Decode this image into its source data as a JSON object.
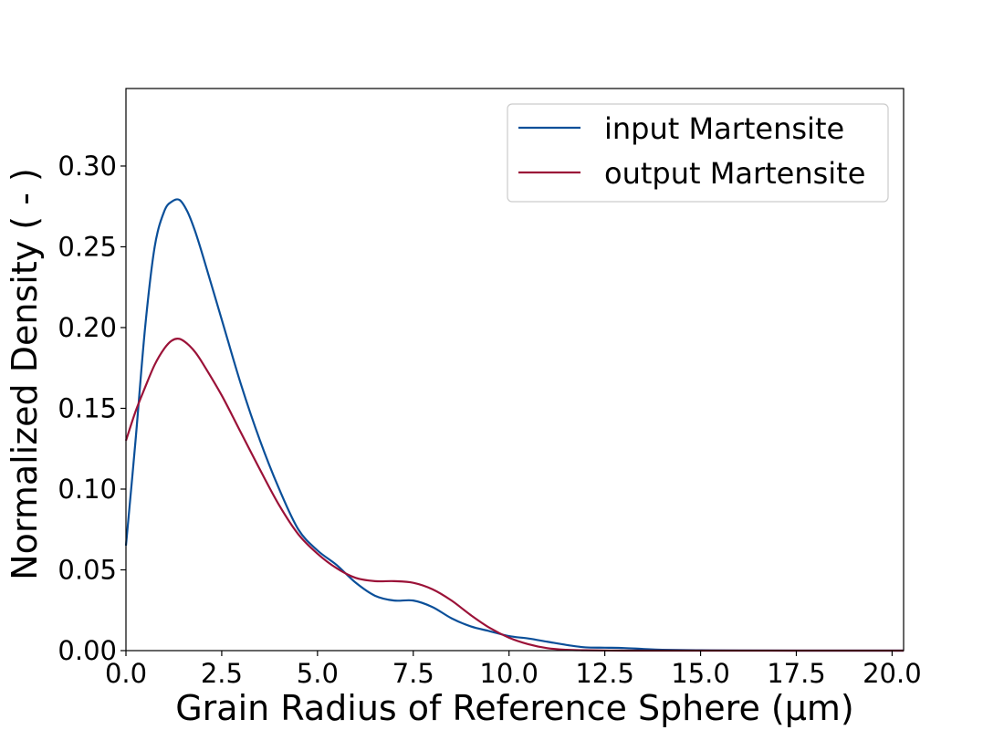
{
  "chart_data": {
    "type": "line",
    "xlabel": "Grain Radius of Reference Sphere (μm)",
    "ylabel": "Normalized Density ( - )",
    "xlim": [
      0,
      20.3
    ],
    "ylim": [
      0,
      0.348
    ],
    "xticks": [
      "0.0",
      "2.5",
      "5.0",
      "7.5",
      "10.0",
      "12.5",
      "15.0",
      "17.5",
      "20.0"
    ],
    "yticks": [
      "0.00",
      "0.05",
      "0.10",
      "0.15",
      "0.20",
      "0.25",
      "0.30"
    ],
    "legend_position": "top-right",
    "grid": false,
    "series": [
      {
        "name": "input Martensite",
        "color": "#0a4f99",
        "x": [
          0,
          0.25,
          0.5,
          0.75,
          1.0,
          1.2,
          1.4,
          1.6,
          1.8,
          2.0,
          2.5,
          3.0,
          3.5,
          4.0,
          4.5,
          5.0,
          5.5,
          6.0,
          6.5,
          7.0,
          7.5,
          8.0,
          8.5,
          9.0,
          9.5,
          10.0,
          10.5,
          11.0,
          11.5,
          12.0,
          12.5,
          13.0,
          13.5,
          14.0,
          15.0,
          16.0,
          18.0,
          20.3
        ],
        "y": [
          0.065,
          0.13,
          0.2,
          0.25,
          0.272,
          0.278,
          0.279,
          0.272,
          0.26,
          0.245,
          0.205,
          0.165,
          0.13,
          0.1,
          0.075,
          0.062,
          0.053,
          0.042,
          0.034,
          0.031,
          0.031,
          0.027,
          0.02,
          0.015,
          0.012,
          0.009,
          0.0075,
          0.0055,
          0.0035,
          0.002,
          0.0018,
          0.0016,
          0.001,
          0.0005,
          0.0002,
          0.0001,
          0.0,
          0.0
        ]
      },
      {
        "name": "output Martensite",
        "color": "#9b1238",
        "x": [
          0,
          0.25,
          0.5,
          0.75,
          1.0,
          1.2,
          1.4,
          1.6,
          1.8,
          2.0,
          2.5,
          3.0,
          3.5,
          4.0,
          4.5,
          5.0,
          5.5,
          6.0,
          6.5,
          7.0,
          7.5,
          8.0,
          8.5,
          9.0,
          9.5,
          10.0,
          10.5,
          11.0,
          11.5,
          12.0,
          13.0,
          14.0,
          16.0,
          20.3
        ],
        "y": [
          0.13,
          0.148,
          0.163,
          0.177,
          0.187,
          0.192,
          0.193,
          0.19,
          0.185,
          0.178,
          0.158,
          0.135,
          0.112,
          0.09,
          0.072,
          0.06,
          0.051,
          0.045,
          0.043,
          0.043,
          0.042,
          0.038,
          0.031,
          0.022,
          0.014,
          0.008,
          0.004,
          0.0015,
          0.0005,
          0.0002,
          0.0,
          0.0,
          0.0,
          0.0
        ]
      }
    ]
  }
}
